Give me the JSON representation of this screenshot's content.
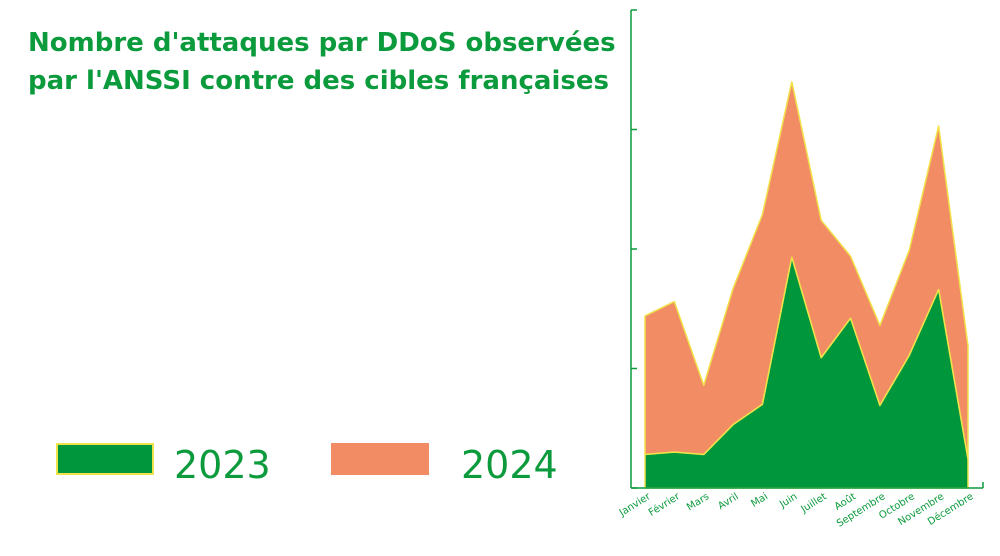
{
  "title": {
    "line1": "Nombre d'attaques par DDoS observées",
    "line2": "par l'ANSSI contre des cibles françaises"
  },
  "colors": {
    "title": "#0b9a3c",
    "series_2023": "#00963c",
    "series_2024": "#f28c64",
    "edge": "#f0e24a",
    "axis": "#0b9a3c"
  },
  "chart_data": {
    "type": "area",
    "stacked": true,
    "categories": [
      "Janvier",
      "Février",
      "Mars",
      "Avril",
      "Mai",
      "Juin",
      "Juillet",
      "Août",
      "Septembre",
      "Octobre",
      "Novembre",
      "Décembre"
    ],
    "series": [
      {
        "name": "2023",
        "values": [
          28,
          30,
          28,
          53,
          70,
          193,
          109,
          142,
          69,
          111,
          166,
          24
        ]
      },
      {
        "name": "2024",
        "values": [
          116,
          126,
          58,
          114,
          159,
          147,
          115,
          52,
          67,
          88,
          137,
          95
        ]
      }
    ],
    "ylim": [
      0,
      400
    ],
    "legend_position": "bottom-left",
    "grid": false
  }
}
